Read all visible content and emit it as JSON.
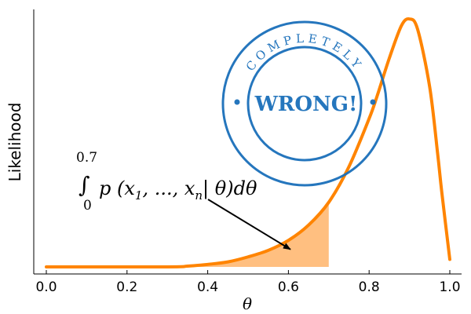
{
  "chart_data": {
    "type": "area",
    "title": "",
    "xlabel": "θ",
    "ylabel": "Likelihood",
    "xlim": [
      0.0,
      1.0
    ],
    "ylim": [
      0,
      1
    ],
    "grid": false,
    "legend": "none",
    "xticks": [
      0.0,
      0.2,
      0.4,
      0.6,
      0.8,
      1.0
    ],
    "xtick_labels": [
      "0.0",
      "0.2",
      "0.4",
      "0.6",
      "0.8",
      "1.0"
    ],
    "series": [
      {
        "name": "likelihood",
        "color": "#ff8400",
        "x": [
          0.0,
          0.3,
          0.35,
          0.4,
          0.45,
          0.5,
          0.55,
          0.6,
          0.65,
          0.7,
          0.75,
          0.8,
          0.82,
          0.85,
          0.88,
          0.9,
          0.92,
          0.95,
          0.97,
          0.98,
          1.0
        ],
        "y": [
          0.0,
          0.0,
          0.003,
          0.01,
          0.02,
          0.04,
          0.066,
          0.106,
          0.167,
          0.258,
          0.4,
          0.592,
          0.683,
          0.833,
          0.963,
          0.99,
          0.95,
          0.72,
          0.45,
          0.3,
          0.03
        ]
      }
    ],
    "shaded_region": {
      "x_from": 0.0,
      "x_to": 0.7,
      "color": "#ffbf80"
    },
    "annotation": {
      "upper_limit": "0.7",
      "lower_limit": "0",
      "integral_sign": "∫",
      "integrand": "p (x",
      "sub_first": "1",
      "middle": ", ..., x",
      "sub_last": "n",
      "tail": "| θ)dθ",
      "arrow_target": {
        "x": 0.605,
        "y": 0.07
      }
    },
    "stamp": {
      "top_text": "COMPLETELY",
      "center_text": "WRONG!",
      "color": "#1a6fba"
    }
  }
}
